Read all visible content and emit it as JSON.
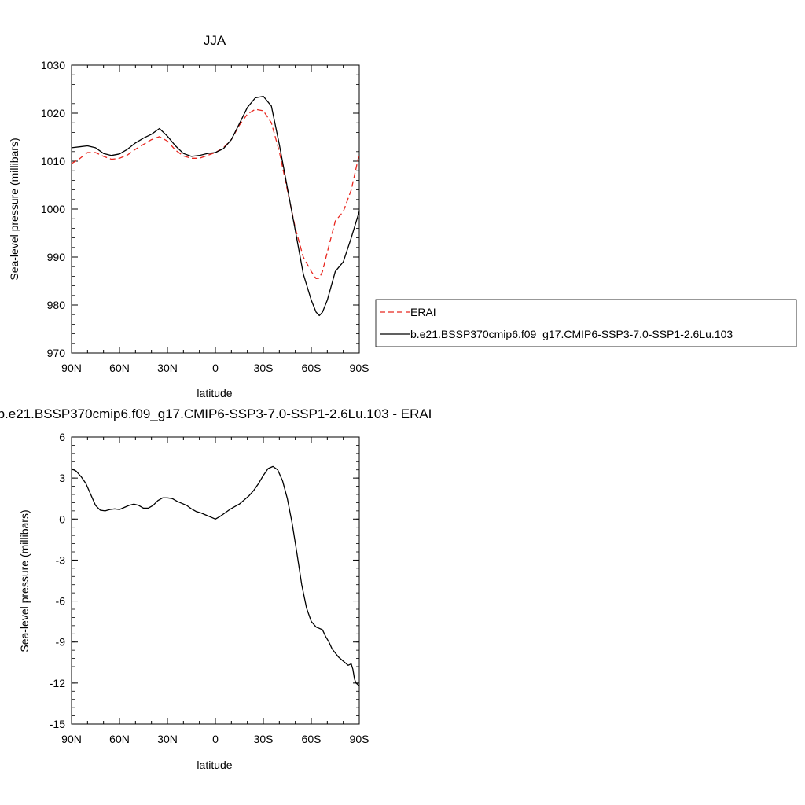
{
  "chart_data": [
    {
      "type": "line",
      "title": "JJA",
      "xlabel": "latitude",
      "ylabel": "Sea-level pressure (millibars)",
      "xlim": [
        90,
        -90
      ],
      "ylim": [
        970,
        1030
      ],
      "xticks": [
        90,
        60,
        30,
        0,
        -30,
        -60,
        -90
      ],
      "xtick_labels": [
        "90N",
        "60N",
        "30N",
        "0",
        "30S",
        "60S",
        "90S"
      ],
      "yticks": [
        970,
        980,
        990,
        1000,
        1010,
        1020,
        1030
      ],
      "ytick_labels": [
        "970",
        "980",
        "990",
        "1000",
        "1010",
        "1020",
        "1030"
      ],
      "legend_position": "right",
      "series": [
        {
          "name": "ERAI",
          "color": "#e8261e",
          "dash": true,
          "x": [
            90,
            85,
            80,
            75,
            70,
            65,
            60,
            55,
            50,
            45,
            40,
            35,
            30,
            25,
            20,
            15,
            10,
            5,
            0,
            -5,
            -10,
            -15,
            -20,
            -25,
            -30,
            -35,
            -40,
            -45,
            -50,
            -55,
            -60,
            -63,
            -65,
            -67,
            -70,
            -75,
            -80,
            -85,
            -90
          ],
          "y": [
            1009.5,
            1010.5,
            1011.8,
            1011.8,
            1011.0,
            1010.4,
            1010.6,
            1011.3,
            1012.5,
            1013.5,
            1014.5,
            1015.1,
            1014.2,
            1012.3,
            1011.1,
            1010.6,
            1010.6,
            1011.2,
            1011.8,
            1012.8,
            1014.5,
            1017.5,
            1019.8,
            1020.8,
            1020.5,
            1018.0,
            1012.0,
            1004.0,
            996.0,
            990.0,
            987.0,
            985.5,
            985.6,
            987.0,
            991.0,
            997.5,
            999.5,
            1004.0,
            1011.5
          ]
        },
        {
          "name": "b.e21.BSSP370cmip6.f09_g17.CMIP6-SSP3-7.0-SSP1-2.6Lu.103",
          "color": "#000000",
          "dash": false,
          "x": [
            90,
            85,
            80,
            75,
            70,
            65,
            60,
            55,
            50,
            45,
            40,
            35,
            30,
            25,
            20,
            15,
            10,
            5,
            0,
            -5,
            -10,
            -15,
            -20,
            -25,
            -30,
            -35,
            -40,
            -45,
            -50,
            -55,
            -60,
            -63,
            -65,
            -67,
            -70,
            -75,
            -80,
            -85,
            -90
          ],
          "y": [
            1012.8,
            1013.0,
            1013.2,
            1012.8,
            1011.6,
            1011.2,
            1011.5,
            1012.5,
            1013.8,
            1014.8,
            1015.6,
            1016.8,
            1015.2,
            1013.2,
            1011.6,
            1011.0,
            1011.2,
            1011.6,
            1011.8,
            1012.6,
            1014.5,
            1017.8,
            1021.2,
            1023.2,
            1023.5,
            1021.5,
            1013.5,
            1004.5,
            995.5,
            986.5,
            981.0,
            978.5,
            977.8,
            978.5,
            981.0,
            987.0,
            989.0,
            994.0,
            999.5
          ]
        }
      ]
    },
    {
      "type": "line",
      "title": "b.e21.BSSP370cmip6.f09_g17.CMIP6-SSP3-7.0-SSP1-2.6Lu.103 - ERAI",
      "xlabel": "latitude",
      "ylabel": "Sea-level pressure (millibars)",
      "xlim": [
        90,
        -90
      ],
      "ylim": [
        -15,
        6
      ],
      "xticks": [
        90,
        60,
        30,
        0,
        -30,
        -60,
        -90
      ],
      "xtick_labels": [
        "90N",
        "60N",
        "30N",
        "0",
        "30S",
        "60S",
        "90S"
      ],
      "yticks": [
        -15,
        -12,
        -9,
        -6,
        -3,
        0,
        3,
        6
      ],
      "ytick_labels": [
        "-15",
        "-12",
        "-9",
        "-6",
        "-3",
        "0",
        "3",
        "6"
      ],
      "series": [
        {
          "color": "#000000",
          "x": [
            90,
            87,
            84,
            81,
            78,
            75,
            72,
            69,
            66,
            63,
            60,
            57,
            54,
            51,
            48,
            45,
            42,
            39,
            36,
            33,
            30,
            27,
            24,
            21,
            18,
            15,
            12,
            9,
            6,
            3,
            0,
            -3,
            -6,
            -9,
            -12,
            -15,
            -18,
            -21,
            -24,
            -27,
            -30,
            -33,
            -36,
            -39,
            -42,
            -45,
            -48,
            -51,
            -54,
            -57,
            -60,
            -63,
            -65,
            -67,
            -69,
            -71,
            -73,
            -75,
            -77,
            -79,
            -81,
            -83,
            -85,
            -86,
            -87,
            -88,
            -90
          ],
          "y": [
            3.7,
            3.5,
            3.1,
            2.6,
            1.8,
            1.0,
            0.65,
            0.6,
            0.7,
            0.75,
            0.7,
            0.85,
            1.0,
            1.1,
            1.0,
            0.8,
            0.8,
            1.0,
            1.35,
            1.55,
            1.55,
            1.5,
            1.3,
            1.15,
            1.0,
            0.75,
            0.55,
            0.45,
            0.3,
            0.15,
            0.0,
            0.2,
            0.45,
            0.7,
            0.9,
            1.1,
            1.4,
            1.7,
            2.1,
            2.6,
            3.2,
            3.7,
            3.85,
            3.6,
            2.8,
            1.5,
            -0.3,
            -2.5,
            -4.8,
            -6.5,
            -7.5,
            -7.9,
            -8.0,
            -8.1,
            -8.6,
            -9.0,
            -9.5,
            -9.8,
            -10.1,
            -10.3,
            -10.5,
            -10.7,
            -10.6,
            -11.0,
            -11.7,
            -12.0,
            -12.2
          ]
        }
      ]
    }
  ]
}
